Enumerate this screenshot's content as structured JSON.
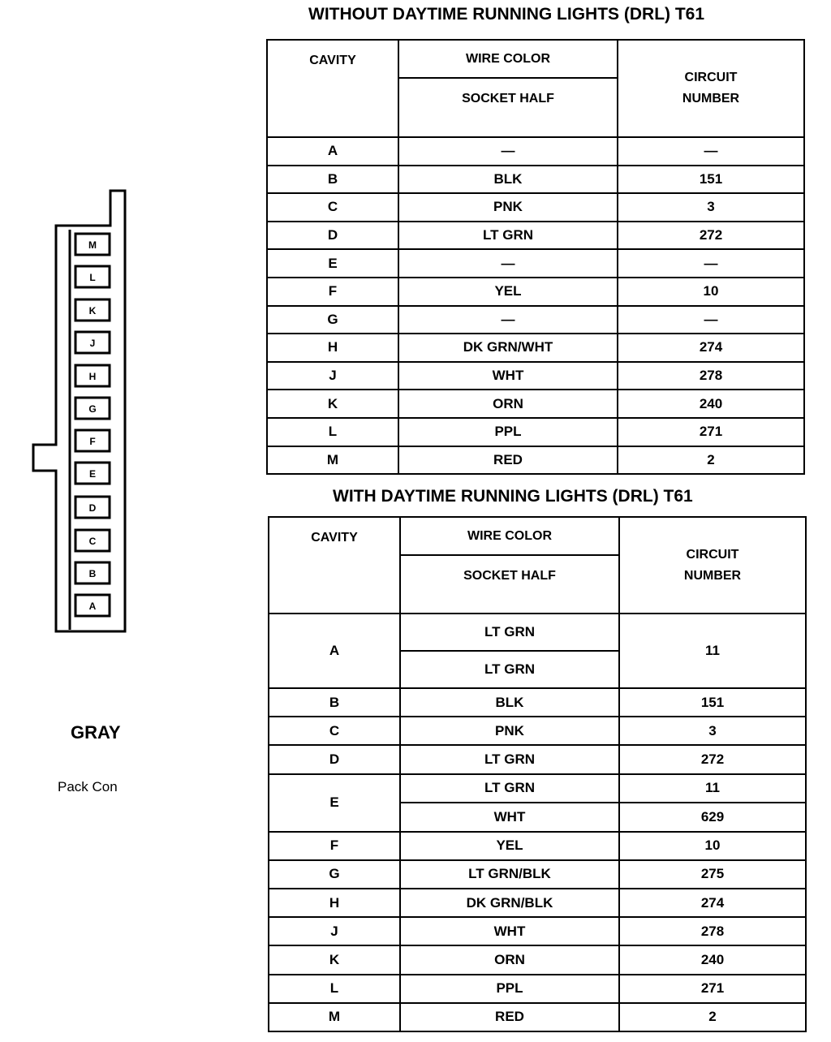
{
  "connector": {
    "color_label": "GRAY",
    "name_label": "Pack Con",
    "cavities": [
      "M",
      "L",
      "K",
      "J",
      "H",
      "G",
      "F",
      "E",
      "D",
      "C",
      "B",
      "A"
    ]
  },
  "headers": {
    "cavity": "CAVITY",
    "wire_color": "WIRE COLOR",
    "socket_half": "SOCKET HALF",
    "circuit_number_1": "CIRCUIT",
    "circuit_number_2": "NUMBER"
  },
  "tables": [
    {
      "title": "WITHOUT DAYTIME RUNNING LIGHTS (DRL) T61",
      "rows": [
        {
          "cavity": "A",
          "wires": [
            "—"
          ],
          "circuits": [
            "—"
          ]
        },
        {
          "cavity": "B",
          "wires": [
            "BLK"
          ],
          "circuits": [
            "151"
          ]
        },
        {
          "cavity": "C",
          "wires": [
            "PNK"
          ],
          "circuits": [
            "3"
          ]
        },
        {
          "cavity": "D",
          "wires": [
            "LT GRN"
          ],
          "circuits": [
            "272"
          ]
        },
        {
          "cavity": "E",
          "wires": [
            "—"
          ],
          "circuits": [
            "—"
          ]
        },
        {
          "cavity": "F",
          "wires": [
            "YEL"
          ],
          "circuits": [
            "10"
          ]
        },
        {
          "cavity": "G",
          "wires": [
            "—"
          ],
          "circuits": [
            "—"
          ]
        },
        {
          "cavity": "H",
          "wires": [
            "DK GRN/WHT"
          ],
          "circuits": [
            "274"
          ]
        },
        {
          "cavity": "J",
          "wires": [
            "WHT"
          ],
          "circuits": [
            "278"
          ]
        },
        {
          "cavity": "K",
          "wires": [
            "ORN"
          ],
          "circuits": [
            "240"
          ]
        },
        {
          "cavity": "L",
          "wires": [
            "PPL"
          ],
          "circuits": [
            "271"
          ]
        },
        {
          "cavity": "M",
          "wires": [
            "RED"
          ],
          "circuits": [
            "2"
          ]
        }
      ]
    },
    {
      "title": "WITH DAYTIME RUNNING LIGHTS (DRL) T61",
      "rows": [
        {
          "cavity": "A",
          "wires": [
            "LT GRN",
            "LT GRN"
          ],
          "circuits": [
            "11"
          ]
        },
        {
          "cavity": "B",
          "wires": [
            "BLK"
          ],
          "circuits": [
            "151"
          ]
        },
        {
          "cavity": "C",
          "wires": [
            "PNK"
          ],
          "circuits": [
            "3"
          ]
        },
        {
          "cavity": "D",
          "wires": [
            "LT GRN"
          ],
          "circuits": [
            "272"
          ]
        },
        {
          "cavity": "E",
          "wires": [
            "LT GRN",
            "WHT"
          ],
          "circuits": [
            "11",
            "629"
          ]
        },
        {
          "cavity": "F",
          "wires": [
            "YEL"
          ],
          "circuits": [
            "10"
          ]
        },
        {
          "cavity": "G",
          "wires": [
            "LT GRN/BLK"
          ],
          "circuits": [
            "275"
          ]
        },
        {
          "cavity": "H",
          "wires": [
            "DK GRN/BLK"
          ],
          "circuits": [
            "274"
          ]
        },
        {
          "cavity": "J",
          "wires": [
            "WHT"
          ],
          "circuits": [
            "278"
          ]
        },
        {
          "cavity": "K",
          "wires": [
            "ORN"
          ],
          "circuits": [
            "240"
          ]
        },
        {
          "cavity": "L",
          "wires": [
            "PPL"
          ],
          "circuits": [
            "271"
          ]
        },
        {
          "cavity": "M",
          "wires": [
            "RED"
          ],
          "circuits": [
            "2"
          ]
        }
      ]
    }
  ]
}
